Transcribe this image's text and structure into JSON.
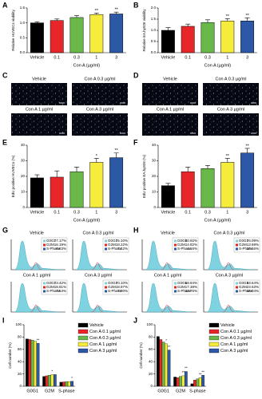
{
  "chart_data": [
    {
      "panel": "A",
      "type": "bar",
      "ylabel": "Relative HUVECs viability",
      "xlabel": "Con A (µg/ml)",
      "categories": [
        "Vehicle",
        "0.1",
        "0.3",
        "1",
        "3"
      ],
      "values": [
        1.0,
        1.08,
        1.18,
        1.28,
        1.3
      ],
      "errors": [
        0.04,
        0.05,
        0.06,
        0.05,
        0.06
      ],
      "significance": [
        null,
        null,
        null,
        "**",
        "**"
      ],
      "colors": [
        "#000000",
        "#e8262a",
        "#6ab84a",
        "#f6ec3b",
        "#2d58a6"
      ],
      "ylim": [
        0,
        1.5
      ],
      "yticks": [
        {
          "value": 0,
          "label": "0.0"
        },
        {
          "value": 0.5,
          "label": "0.5"
        },
        {
          "value": 1,
          "label": "1.0"
        },
        {
          "value": 1.5,
          "label": "1.5"
        }
      ]
    },
    {
      "panel": "B",
      "type": "bar",
      "ylabel": "Relative EA.hy926 viability",
      "xlabel": "Con A (µg/ml)",
      "categories": [
        "Vehicle",
        "0.1",
        "0.3",
        "1",
        "3"
      ],
      "values": [
        1.0,
        1.18,
        1.35,
        1.42,
        1.42
      ],
      "errors": [
        0.12,
        0.1,
        0.12,
        0.1,
        0.14
      ],
      "significance": [
        null,
        null,
        null,
        "**",
        "**"
      ],
      "colors": [
        "#000000",
        "#e8262a",
        "#6ab84a",
        "#f6ec3b",
        "#2d58a6"
      ],
      "ylim": [
        0,
        2
      ],
      "yticks": [
        {
          "value": 0,
          "label": "0.0"
        },
        {
          "value": 0.5,
          "label": "0.5"
        },
        {
          "value": 1,
          "label": "1.0"
        },
        {
          "value": 1.5,
          "label": "1.5"
        },
        {
          "value": 2,
          "label": "2.0"
        }
      ]
    },
    {
      "panel": "C",
      "type": "images",
      "images": [
        "Vehicle",
        "Con A 0.3 µg/ml",
        "Con A 1 µg/ml",
        "Con A 3 µg/ml"
      ]
    },
    {
      "panel": "D",
      "type": "images",
      "images": [
        "Vehicle",
        "Con A 0.3 µg/ml",
        "Con A 1 µg/ml",
        "Con A 3 µg/ml"
      ]
    },
    {
      "panel": "E",
      "type": "bar",
      "ylabel": "EdU positive HUVECs (%)",
      "xlabel": "Con A (µg/ml)",
      "categories": [
        "Vehicle",
        "0.1",
        "0.3",
        "1",
        "3"
      ],
      "values": [
        19,
        19.5,
        23,
        29,
        32
      ],
      "errors": [
        2,
        4,
        3,
        2.5,
        3
      ],
      "significance": [
        null,
        null,
        null,
        "*",
        "**"
      ],
      "colors": [
        "#000000",
        "#e8262a",
        "#6ab84a",
        "#f6ec3b",
        "#2d58a6"
      ],
      "ylim": [
        0,
        40
      ],
      "yticks": [
        0,
        10,
        20,
        30,
        40
      ]
    },
    {
      "panel": "F",
      "type": "bar",
      "ylabel": "EdU positive EA.hy926 (%)",
      "xlabel": "Con A (µg/ml)",
      "categories": [
        "Vehicle",
        "0.1",
        "0.3",
        "1",
        "3"
      ],
      "values": [
        14,
        23,
        25,
        29,
        35
      ],
      "errors": [
        1.5,
        3,
        2,
        2.5,
        3
      ],
      "significance": [
        null,
        null,
        null,
        "**",
        "**"
      ],
      "colors": [
        "#000000",
        "#e8262a",
        "#6ab84a",
        "#f6ec3b",
        "#2d58a6"
      ],
      "ylim": [
        0,
        40
      ],
      "yticks": [
        0,
        10,
        20,
        30,
        40
      ]
    },
    {
      "panel": "G",
      "type": "flow",
      "phases": [
        "G0G1",
        "G2M",
        "S-Phase"
      ],
      "phase_colors": [
        "#7fd3e0",
        "#e8262a",
        "#2d58a6"
      ],
      "plots": [
        {
          "label": "Vehicle",
          "values": [
            77.17,
            16.19,
            6.63
          ],
          "value_labels": [
            "77.17%",
            "16.19%",
            "6.63%"
          ]
        },
        {
          "label": "Con A 0.3 µg/ml",
          "values": [
            75.1,
            18.22,
            7.42
          ],
          "value_labels": [
            "75.10%",
            "18.22%",
            "7.42%"
          ]
        },
        {
          "label": "Con A 1 µg/ml",
          "values": [
            73.42,
            18.81,
            7.54
          ],
          "value_labels": [
            "73.42%",
            "18.81%",
            "7.54%"
          ]
        },
        {
          "label": "Con A 3 µg/ml",
          "values": [
            70.1,
            18.97,
            7.9
          ],
          "value_labels": [
            "70.10%",
            "18.97%",
            "7.90%"
          ]
        }
      ]
    },
    {
      "panel": "H",
      "type": "flow",
      "phases": [
        "G0G1",
        "G2M",
        "S-Phase"
      ],
      "phase_colors": [
        "#7fd3e0",
        "#e8262a",
        "#2d58a6"
      ],
      "plots": [
        {
          "label": "Vehicle",
          "values": [
            80.92,
            14.82,
            4.16
          ],
          "value_labels": [
            "80.92%",
            "14.82%",
            "4.16%"
          ]
        },
        {
          "label": "Con A 0.3 µg/ml",
          "values": [
            76.09,
            13.69,
            10.16
          ],
          "value_labels": [
            "76.09%",
            "13.69%",
            "10.16%"
          ]
        },
        {
          "label": "Con A 1 µg/ml",
          "values": [
            68.84,
            17.38,
            13.76
          ],
          "value_labels": [
            "68.84%",
            "17.38%",
            "13.76%"
          ]
        },
        {
          "label": "Con A 3 µg/ml",
          "values": [
            58.64,
            23.63,
            18.04
          ],
          "value_labels": [
            "58.64%",
            "23.63%",
            "18.04%"
          ]
        }
      ]
    },
    {
      "panel": "I",
      "type": "grouped",
      "ylabel": "Cell number (%)",
      "categories": [
        "G0G1",
        "G2M",
        "S-phase"
      ],
      "ylim": [
        0,
        100
      ],
      "yticks": [
        0,
        20,
        40,
        60,
        80,
        100
      ],
      "series": [
        {
          "name": "Vehicle",
          "color": "#000000",
          "values": [
            77,
            16,
            6.6
          ],
          "significance": [
            null,
            null,
            null
          ]
        },
        {
          "name": "Con A 0.1 µg/ml",
          "color": "#e8262a",
          "values": [
            76,
            17,
            7
          ],
          "significance": [
            null,
            null,
            null
          ]
        },
        {
          "name": "Con A 0.3 µg/ml",
          "color": "#6ab84a",
          "values": [
            75,
            18,
            7.4
          ],
          "significance": [
            null,
            null,
            null
          ]
        },
        {
          "name": "Con A 1 µg/ml",
          "color": "#f6ec3b",
          "values": [
            73,
            19,
            7.5
          ],
          "significance": [
            null,
            "*",
            null
          ]
        },
        {
          "name": "Con A 3 µg/ml",
          "color": "#2d58a6",
          "values": [
            70,
            19,
            8
          ],
          "significance": [
            "**",
            null,
            "*"
          ]
        }
      ]
    },
    {
      "panel": "J",
      "type": "grouped",
      "ylabel": "Cell number (%)",
      "categories": [
        "G0G1",
        "G2M",
        "S-phase"
      ],
      "ylim": [
        0,
        100
      ],
      "yticks": [
        0,
        20,
        40,
        60,
        80,
        100
      ],
      "series": [
        {
          "name": "Vehicle",
          "color": "#000000",
          "values": [
            81,
            15,
            4
          ],
          "significance": [
            null,
            null,
            null
          ]
        },
        {
          "name": "Con A 0.1 µg/ml",
          "color": "#e8262a",
          "values": [
            76,
            14,
            10
          ],
          "significance": [
            null,
            null,
            null
          ]
        },
        {
          "name": "Con A 0.3 µg/ml",
          "color": "#6ab84a",
          "values": [
            72,
            16,
            12
          ],
          "significance": [
            null,
            null,
            null
          ]
        },
        {
          "name": "Con A 1 µg/ml",
          "color": "#f6ec3b",
          "values": [
            69,
            17,
            14
          ],
          "significance": [
            "*",
            "**",
            "**"
          ]
        },
        {
          "name": "Con A 3 µg/ml",
          "color": "#2d58a6",
          "values": [
            59,
            24,
            18
          ],
          "significance": [
            "**",
            "**",
            "**"
          ]
        }
      ]
    }
  ]
}
